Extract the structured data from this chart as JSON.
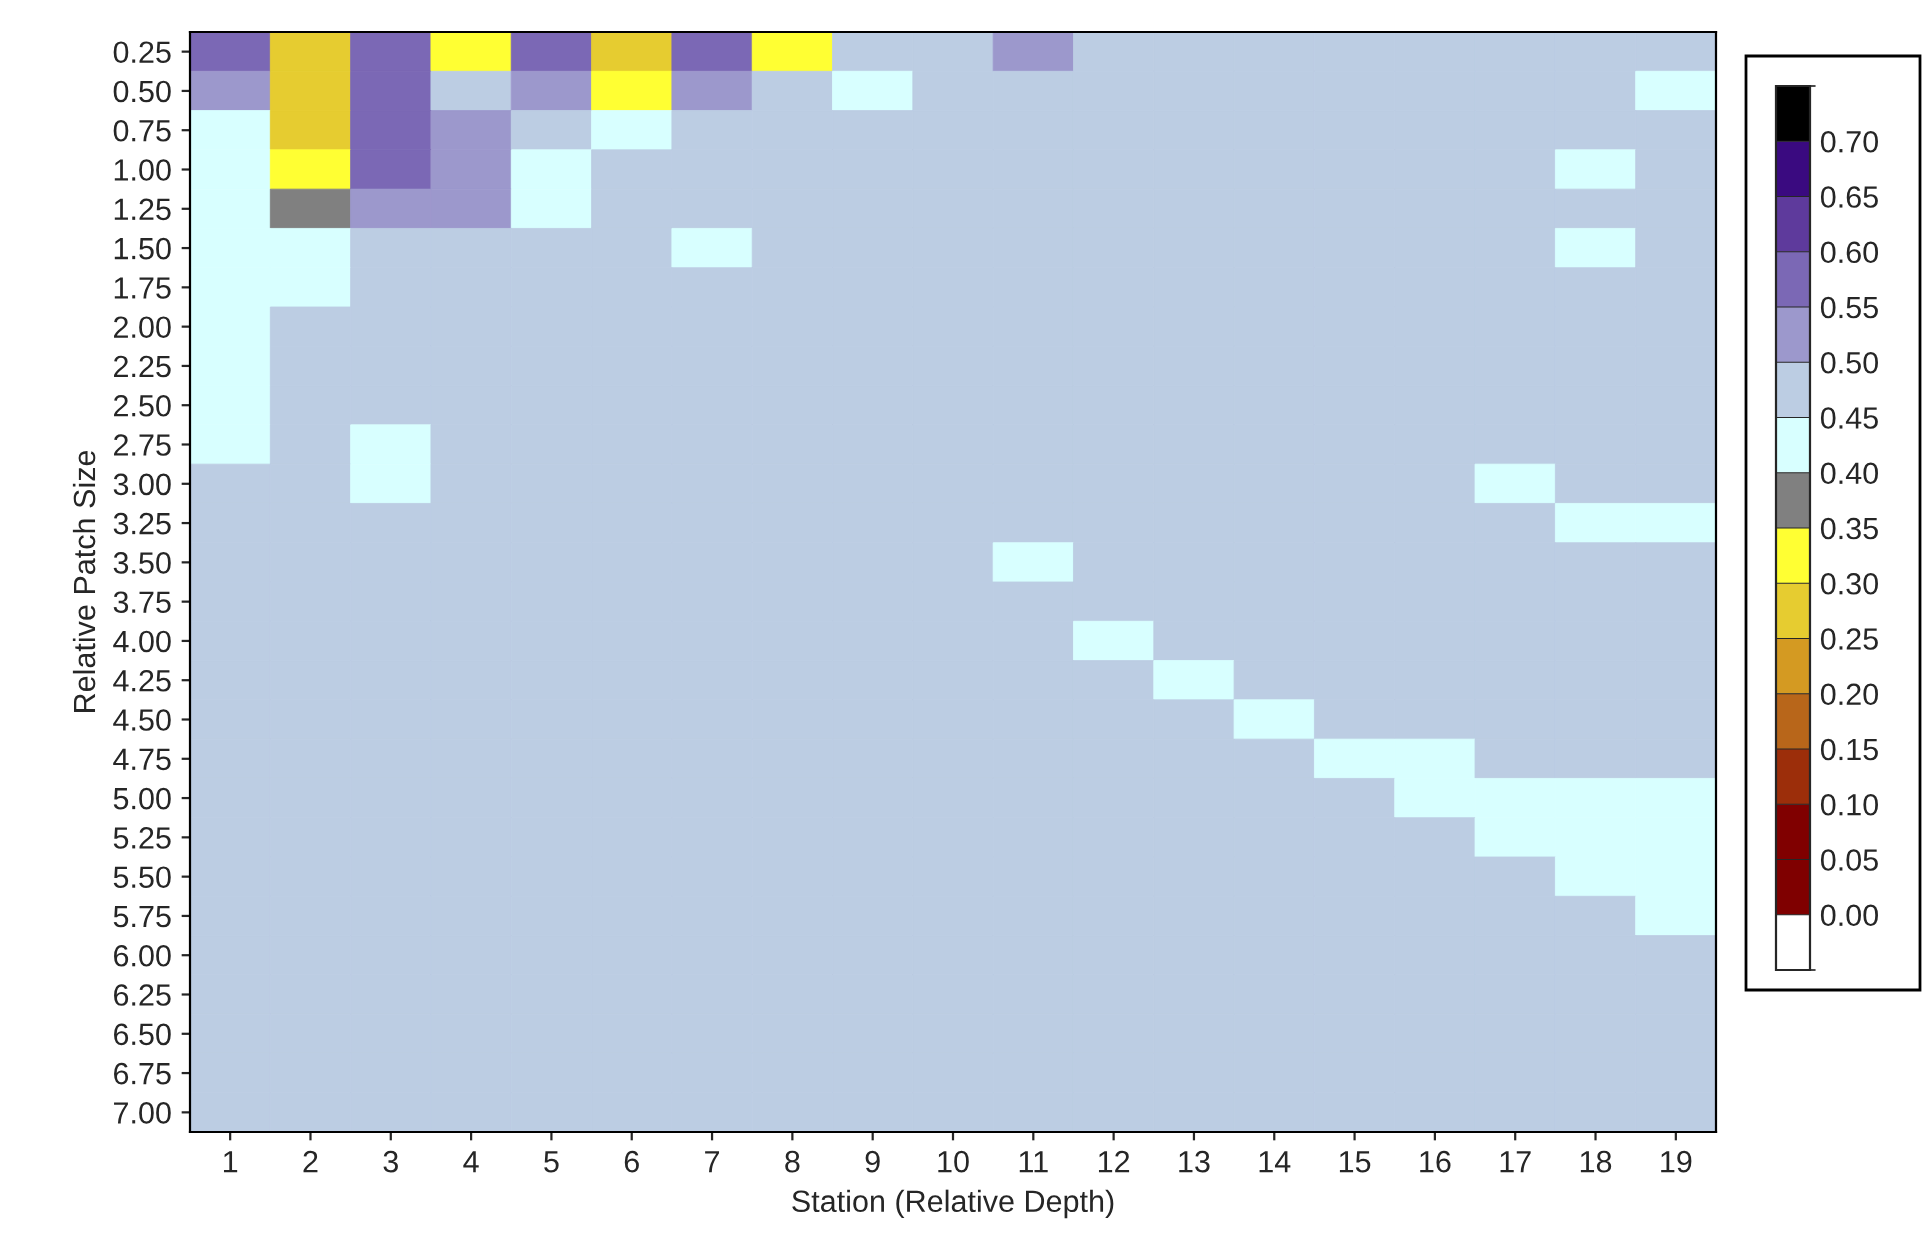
{
  "chart_data": {
    "type": "heatmap",
    "xlabel": "Station (Relative Depth)",
    "ylabel": "Relative Patch Size",
    "categories": [
      "1",
      "2",
      "3",
      "4",
      "5",
      "6",
      "7",
      "8",
      "9",
      "10",
      "11",
      "12",
      "13",
      "14",
      "15",
      "16",
      "17",
      "18",
      "19"
    ],
    "y_categories": [
      "0.25",
      "0.50",
      "0.75",
      "1.00",
      "1.25",
      "1.50",
      "1.75",
      "2.00",
      "2.25",
      "2.50",
      "2.75",
      "3.00",
      "3.25",
      "3.50",
      "3.75",
      "4.00",
      "4.25",
      "4.50",
      "4.75",
      "5.00",
      "5.25",
      "5.50",
      "5.75",
      "6.00",
      "6.25",
      "6.50",
      "6.75",
      "7.00"
    ],
    "cells": [
      [
        0.57,
        0.27,
        0.57,
        0.32,
        0.57,
        0.27,
        0.57,
        0.32,
        0.47,
        0.47,
        0.52,
        0.47,
        0.47,
        0.47,
        0.47,
        0.47,
        0.47,
        0.47,
        0.47
      ],
      [
        0.52,
        0.27,
        0.57,
        0.47,
        0.52,
        0.32,
        0.52,
        0.47,
        0.42,
        0.47,
        0.47,
        0.47,
        0.47,
        0.47,
        0.47,
        0.47,
        0.47,
        0.47,
        0.42
      ],
      [
        0.42,
        0.27,
        0.57,
        0.52,
        0.47,
        0.42,
        0.47,
        0.47,
        0.47,
        0.47,
        0.47,
        0.47,
        0.47,
        0.47,
        0.47,
        0.47,
        0.47,
        0.47,
        0.47
      ],
      [
        0.42,
        0.32,
        0.55,
        0.52,
        0.42,
        0.47,
        0.47,
        0.47,
        0.47,
        0.47,
        0.47,
        0.47,
        0.47,
        0.47,
        0.47,
        0.47,
        0.47,
        0.42,
        0.47
      ],
      [
        0.42,
        0.37,
        0.52,
        0.52,
        0.42,
        0.47,
        0.47,
        0.47,
        0.47,
        0.47,
        0.47,
        0.47,
        0.47,
        0.47,
        0.47,
        0.47,
        0.47,
        0.47,
        0.47
      ],
      [
        0.42,
        0.42,
        0.47,
        0.47,
        0.47,
        0.47,
        0.42,
        0.47,
        0.47,
        0.47,
        0.47,
        0.47,
        0.47,
        0.47,
        0.47,
        0.47,
        0.47,
        0.42,
        0.47
      ],
      [
        0.42,
        0.42,
        0.47,
        0.47,
        0.47,
        0.47,
        0.47,
        0.47,
        0.47,
        0.47,
        0.47,
        0.47,
        0.47,
        0.47,
        0.47,
        0.47,
        0.47,
        0.47,
        0.47
      ],
      [
        0.42,
        0.47,
        0.47,
        0.47,
        0.47,
        0.47,
        0.47,
        0.47,
        0.47,
        0.47,
        0.47,
        0.47,
        0.47,
        0.47,
        0.47,
        0.47,
        0.47,
        0.47,
        0.47
      ],
      [
        0.42,
        0.47,
        0.47,
        0.47,
        0.47,
        0.47,
        0.47,
        0.47,
        0.47,
        0.47,
        0.47,
        0.47,
        0.47,
        0.47,
        0.47,
        0.47,
        0.47,
        0.47,
        0.47
      ],
      [
        0.42,
        0.47,
        0.47,
        0.47,
        0.47,
        0.47,
        0.47,
        0.47,
        0.47,
        0.47,
        0.47,
        0.47,
        0.47,
        0.47,
        0.47,
        0.47,
        0.47,
        0.47,
        0.47
      ],
      [
        0.42,
        0.47,
        0.42,
        0.47,
        0.47,
        0.47,
        0.47,
        0.47,
        0.47,
        0.47,
        0.47,
        0.47,
        0.47,
        0.47,
        0.47,
        0.47,
        0.47,
        0.47,
        0.47
      ],
      [
        0.47,
        0.47,
        0.42,
        0.47,
        0.47,
        0.47,
        0.47,
        0.47,
        0.47,
        0.47,
        0.47,
        0.47,
        0.47,
        0.47,
        0.47,
        0.47,
        0.42,
        0.47,
        0.47
      ],
      [
        0.47,
        0.47,
        0.47,
        0.47,
        0.47,
        0.47,
        0.47,
        0.47,
        0.47,
        0.47,
        0.47,
        0.47,
        0.47,
        0.47,
        0.47,
        0.47,
        0.47,
        0.42,
        0.42
      ],
      [
        0.47,
        0.47,
        0.47,
        0.47,
        0.47,
        0.47,
        0.47,
        0.47,
        0.47,
        0.47,
        0.42,
        0.47,
        0.47,
        0.47,
        0.47,
        0.47,
        0.47,
        0.47,
        0.47
      ],
      [
        0.47,
        0.47,
        0.47,
        0.47,
        0.47,
        0.47,
        0.47,
        0.47,
        0.47,
        0.47,
        0.47,
        0.47,
        0.47,
        0.47,
        0.47,
        0.47,
        0.47,
        0.47,
        0.47
      ],
      [
        0.47,
        0.47,
        0.47,
        0.47,
        0.47,
        0.47,
        0.47,
        0.47,
        0.47,
        0.47,
        0.47,
        0.42,
        0.47,
        0.47,
        0.47,
        0.47,
        0.47,
        0.47,
        0.47
      ],
      [
        0.47,
        0.47,
        0.47,
        0.47,
        0.47,
        0.47,
        0.47,
        0.47,
        0.47,
        0.47,
        0.47,
        0.47,
        0.42,
        0.47,
        0.47,
        0.47,
        0.47,
        0.47,
        0.47
      ],
      [
        0.47,
        0.47,
        0.47,
        0.47,
        0.47,
        0.47,
        0.47,
        0.47,
        0.47,
        0.47,
        0.47,
        0.47,
        0.47,
        0.42,
        0.47,
        0.47,
        0.47,
        0.47,
        0.47
      ],
      [
        0.47,
        0.47,
        0.47,
        0.47,
        0.47,
        0.47,
        0.47,
        0.47,
        0.47,
        0.47,
        0.47,
        0.47,
        0.47,
        0.47,
        0.42,
        0.42,
        0.47,
        0.47,
        0.47
      ],
      [
        0.47,
        0.47,
        0.47,
        0.47,
        0.47,
        0.47,
        0.47,
        0.47,
        0.47,
        0.47,
        0.47,
        0.47,
        0.47,
        0.47,
        0.47,
        0.42,
        0.42,
        0.42,
        0.42
      ],
      [
        0.47,
        0.47,
        0.47,
        0.47,
        0.47,
        0.47,
        0.47,
        0.47,
        0.47,
        0.47,
        0.47,
        0.47,
        0.47,
        0.47,
        0.47,
        0.47,
        0.42,
        0.42,
        0.42
      ],
      [
        0.47,
        0.47,
        0.47,
        0.47,
        0.47,
        0.47,
        0.47,
        0.47,
        0.47,
        0.47,
        0.47,
        0.47,
        0.47,
        0.47,
        0.47,
        0.47,
        0.47,
        0.42,
        0.42
      ],
      [
        0.47,
        0.47,
        0.47,
        0.47,
        0.47,
        0.47,
        0.47,
        0.47,
        0.47,
        0.47,
        0.47,
        0.47,
        0.47,
        0.47,
        0.47,
        0.47,
        0.47,
        0.47,
        0.42
      ],
      [
        0.47,
        0.47,
        0.47,
        0.47,
        0.47,
        0.47,
        0.47,
        0.47,
        0.47,
        0.47,
        0.47,
        0.47,
        0.47,
        0.47,
        0.47,
        0.47,
        0.47,
        0.47,
        0.47
      ],
      [
        0.47,
        0.47,
        0.47,
        0.47,
        0.47,
        0.47,
        0.47,
        0.47,
        0.47,
        0.47,
        0.47,
        0.47,
        0.47,
        0.47,
        0.47,
        0.47,
        0.47,
        0.47,
        0.47
      ],
      [
        0.47,
        0.47,
        0.47,
        0.47,
        0.47,
        0.47,
        0.47,
        0.47,
        0.47,
        0.47,
        0.47,
        0.47,
        0.47,
        0.47,
        0.47,
        0.47,
        0.47,
        0.47,
        0.47
      ],
      [
        0.47,
        0.47,
        0.47,
        0.47,
        0.47,
        0.47,
        0.47,
        0.47,
        0.47,
        0.47,
        0.47,
        0.47,
        0.47,
        0.47,
        0.47,
        0.47,
        0.47,
        0.47,
        0.47
      ],
      [
        0.47,
        0.47,
        0.47,
        0.47,
        0.47,
        0.47,
        0.47,
        0.47,
        0.47,
        0.47,
        0.47,
        0.47,
        0.47,
        0.47,
        0.47,
        0.47,
        0.47,
        0.47,
        0.47
      ]
    ],
    "clim": [
      -0.05,
      0.75
    ],
    "cticks": [
      {
        "value": 0.0,
        "label": "0.00"
      },
      {
        "value": 0.05,
        "label": "0.05"
      },
      {
        "value": 0.1,
        "label": "0.10"
      },
      {
        "value": 0.15,
        "label": "0.15"
      },
      {
        "value": 0.2,
        "label": "0.20"
      },
      {
        "value": 0.25,
        "label": "0.25"
      },
      {
        "value": 0.3,
        "label": "0.30"
      },
      {
        "value": 0.35,
        "label": "0.35"
      },
      {
        "value": 0.4,
        "label": "0.40"
      },
      {
        "value": 0.45,
        "label": "0.45"
      },
      {
        "value": 0.5,
        "label": "0.50"
      },
      {
        "value": 0.55,
        "label": "0.55"
      },
      {
        "value": 0.6,
        "label": "0.60"
      },
      {
        "value": 0.65,
        "label": "0.65"
      },
      {
        "value": 0.7,
        "label": "0.70"
      }
    ],
    "colors": [
      "#ffffff",
      "#7f0000",
      "#800000",
      "#9c2e0a",
      "#b8661a",
      "#d49a22",
      "#e6cc30",
      "#ffff33",
      "#808080",
      "#d8ffff",
      "#bccde3",
      "#9c98cc",
      "#7b68b5",
      "#5e3a9c",
      "#3a0a80",
      "#000000"
    ]
  }
}
